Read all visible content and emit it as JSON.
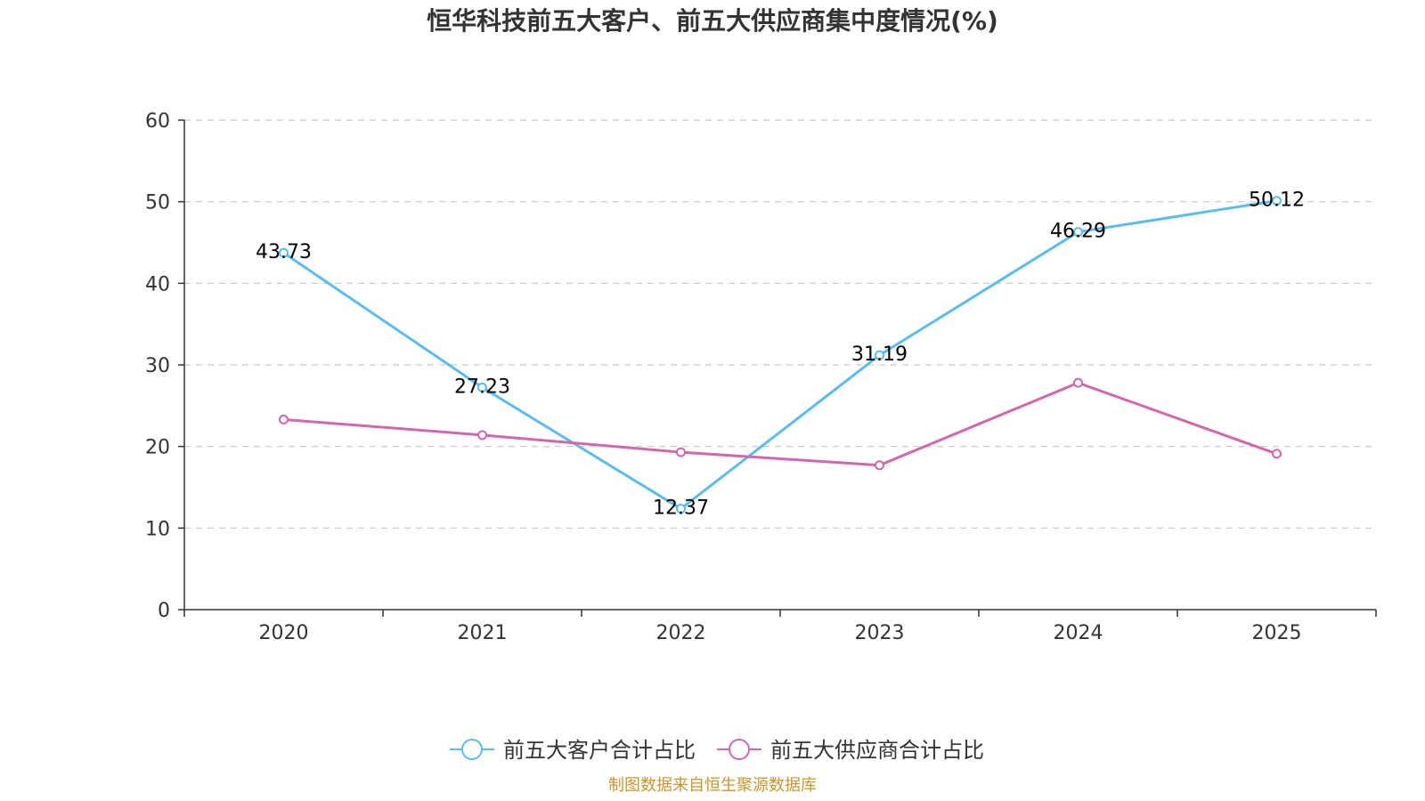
{
  "colors": {
    "series1": "#5bbcf0",
    "series2": "#d466aa",
    "axis": "#333333",
    "grid": "#c8c8c8",
    "source": "#c8962e"
  },
  "chart_data": {
    "type": "line",
    "title": "恒华科技前五大客户、前五大供应商集中度情况(%)",
    "categories": [
      "2020",
      "2021",
      "2022",
      "2023",
      "2024",
      "2025"
    ],
    "ylim": [
      0,
      60
    ],
    "yticks": [
      0,
      10,
      20,
      30,
      40,
      50,
      60
    ],
    "grid": true,
    "legend_position": "bottom",
    "series": [
      {
        "name": "前五大客户合计占比",
        "values": [
          43.73,
          27.23,
          12.37,
          31.19,
          46.29,
          50.12
        ],
        "labels": [
          "43.73",
          "27.23",
          "12.37",
          "31.19",
          "46.29",
          "50.12"
        ],
        "color_key": "series1"
      },
      {
        "name": "前五大供应商合计占比",
        "values": [
          23.3,
          21.4,
          19.3,
          17.7,
          27.8,
          19.1
        ],
        "labels": [],
        "color_key": "series2"
      }
    ],
    "source": "制图数据来自恒生聚源数据库"
  }
}
